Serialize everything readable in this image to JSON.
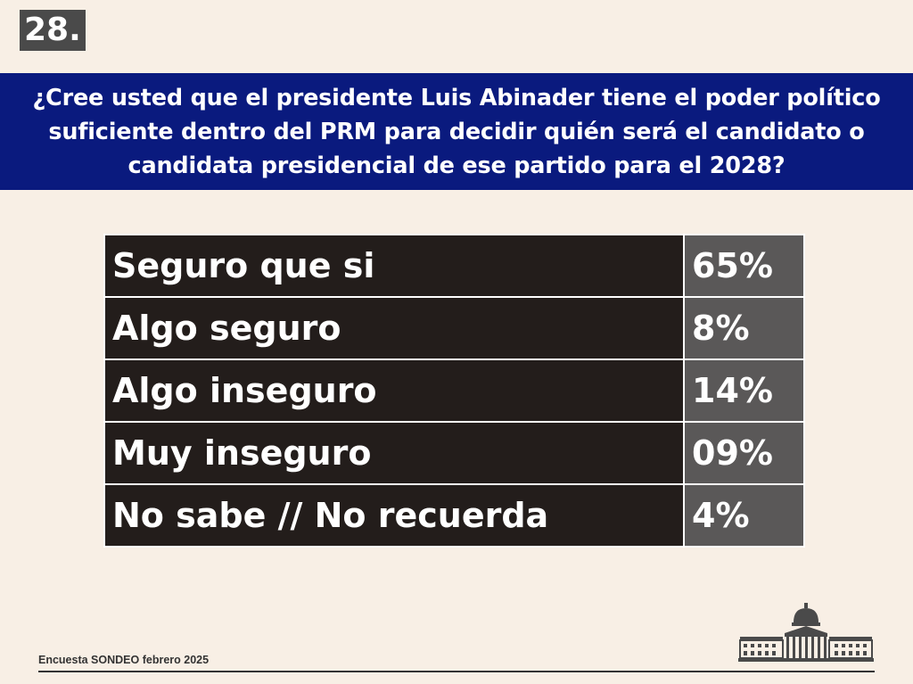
{
  "slide": {
    "number": "28."
  },
  "question": {
    "text": "¿Cree usted que el presidente Luis Abinader tiene el poder político suficiente dentro del PRM para decidir quién será el candidato o candidata presidencial de ese partido para el 2028?"
  },
  "chart_data": {
    "type": "table",
    "title": "¿Cree usted que el presidente Luis Abinader tiene el poder político suficiente dentro del PRM para decidir quién será el candidato o candidata presidencial de ese partido para el 2028?",
    "rows": [
      {
        "label": "Seguro que si",
        "value": 65,
        "display": "65%"
      },
      {
        "label": "Algo seguro",
        "value": 8,
        "display": "8%"
      },
      {
        "label": "Algo inseguro",
        "value": 14,
        "display": "14%"
      },
      {
        "label": "Muy inseguro",
        "value": 9,
        "display": "09%"
      },
      {
        "label": "No sabe // No recuerda",
        "value": 4,
        "display": "4%"
      }
    ]
  },
  "footer": {
    "source": "Encuesta SONDEO febrero 2025"
  },
  "icons": {
    "logo": "capitol-building-icon"
  },
  "colors": {
    "background": "#f8efe5",
    "banner": "#0a1a7e",
    "label_cell": "#231d1b",
    "value_cell": "#5a5858",
    "slide_number_bg": "#4a4a4a"
  }
}
